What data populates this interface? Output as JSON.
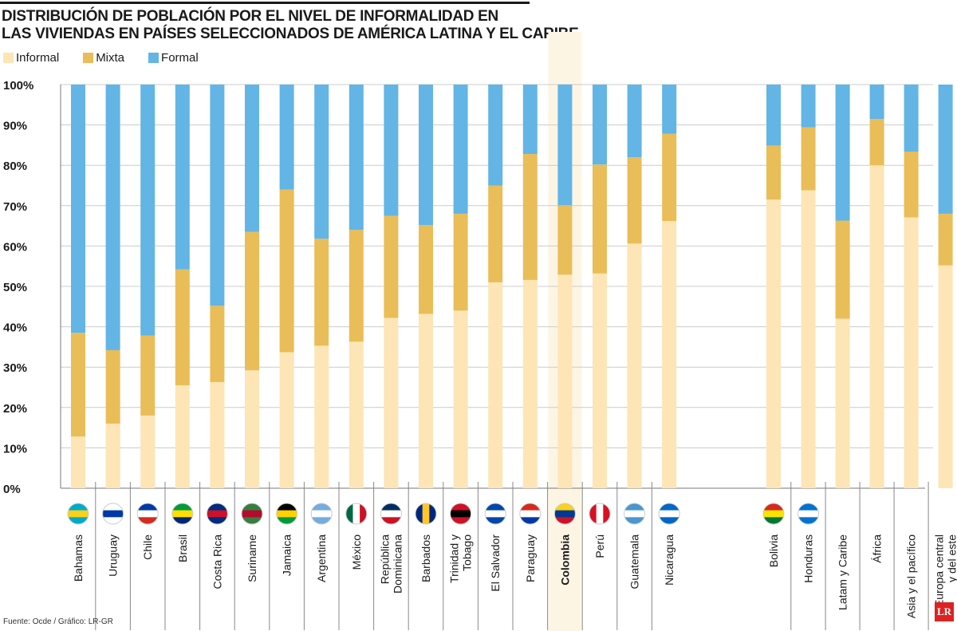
{
  "title_lines": [
    "DISTRIBUCIÓN DE POBLACIÓN POR EL NIVEL DE INFORMALIDAD EN",
    "LAS VIVIENDAS EN PAÍSES SELECCIONADOS DE AMÉRICA LATINA Y EL CARIBE"
  ],
  "source": "Fuente: Ocde / Gráfico: LR-GR",
  "logo": "LR",
  "colors": {
    "Informal": "#fde5b5",
    "Mixta": "#e9bd58",
    "Formal": "#62b5e5",
    "highlight": "#fdf5e4",
    "grid": "#cccccc"
  },
  "chart_data": {
    "type": "bar",
    "stacked": true,
    "title": "DISTRIBUCIÓN DE POBLACIÓN POR EL NIVEL DE INFORMALIDAD EN LAS VIVIENDAS EN PAÍSES SELECCIONADOS DE AMÉRICA LATINA Y EL CARIBE",
    "ylim": [
      0,
      100
    ],
    "yticks": [
      "0%",
      "10%",
      "20%",
      "30%",
      "40%",
      "50%",
      "60%",
      "70%",
      "80%",
      "90%",
      "100%"
    ],
    "grid": true,
    "legend_placement": "top-left",
    "highlight": "Colombia",
    "categories": [
      "Bahamas",
      "Uruguay",
      "Chile",
      "Brasil",
      "Costa Rica",
      "Suriname",
      "Jamaica",
      "Argentina",
      "México",
      "República Dominicana",
      "Barbados",
      "Trinidad y Tobago",
      "El Salvador",
      "Paraguay",
      "Colombia",
      "Perú",
      "Guatemala",
      "Nicaragua",
      "Bolivia",
      "Honduras",
      "Latam y Caribe",
      "África",
      "Asia y el pacífico",
      "Europa central y del este"
    ],
    "series": [
      {
        "name": "Informal",
        "values": [
          12.8,
          16.0,
          18.0,
          25.5,
          26.3,
          29.2,
          33.7,
          35.3,
          36.3,
          42.2,
          43.2,
          44.0,
          51.0,
          51.6,
          52.9,
          53.2,
          60.6,
          66.2,
          71.5,
          73.8,
          42.0,
          80.0,
          67.1,
          55.2
        ]
      },
      {
        "name": "Mixta",
        "values": [
          25.7,
          18.2,
          19.8,
          28.7,
          18.9,
          34.3,
          40.3,
          26.5,
          27.7,
          25.3,
          22.0,
          24.0,
          24.0,
          31.2,
          17.2,
          27.0,
          21.4,
          21.6,
          13.4,
          15.6,
          24.3,
          11.5,
          16.3,
          12.8
        ]
      },
      {
        "name": "Formal",
        "values": [
          61.5,
          65.8,
          62.2,
          45.8,
          54.8,
          36.5,
          26.0,
          38.2,
          36.0,
          32.5,
          34.8,
          32.0,
          25.0,
          17.2,
          29.9,
          19.8,
          18.0,
          12.2,
          15.1,
          10.6,
          33.7,
          8.5,
          16.6,
          32.0
        ]
      }
    ]
  }
}
